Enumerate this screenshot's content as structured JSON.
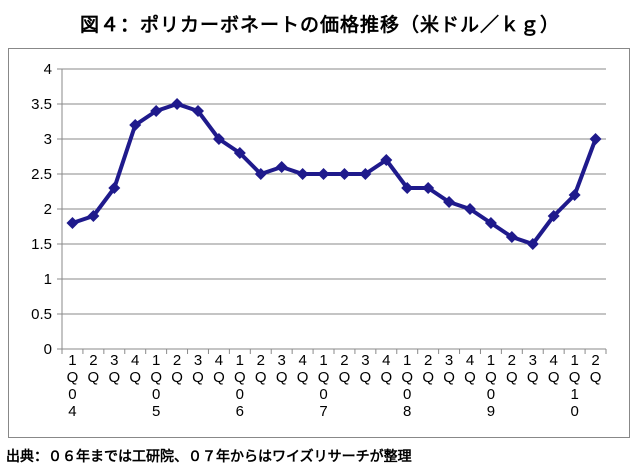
{
  "title": "図４：ポリカーボネートの価格推移（米ドル／ｋｇ）",
  "source": "出典：０６年までは工研院、０７年からはワイズリサーチが整理",
  "colors": {
    "line": "#1f1a8c",
    "grid": "#8a8a8a",
    "axis": "#8a8a8a"
  },
  "chart_data": {
    "type": "line",
    "title": "図４：ポリカーボネートの価格推移（米ドル／ｋｇ）",
    "xlabel": "",
    "ylabel": "",
    "ylim": [
      0,
      4
    ],
    "yticks": [
      "0",
      "0.5",
      "1",
      "1.5",
      "2",
      "2.5",
      "3",
      "3.5",
      "4"
    ],
    "grid": true,
    "legend": "none",
    "marker": "diamond",
    "categories": [
      [
        "1",
        "Q",
        "0",
        "4"
      ],
      [
        "2",
        "Q"
      ],
      [
        "3",
        "Q"
      ],
      [
        "4",
        "Q"
      ],
      [
        "1",
        "Q",
        "0",
        "5"
      ],
      [
        "2",
        "Q"
      ],
      [
        "3",
        "Q"
      ],
      [
        "4",
        "Q"
      ],
      [
        "1",
        "Q",
        "0",
        "6"
      ],
      [
        "2",
        "Q"
      ],
      [
        "3",
        "Q"
      ],
      [
        "4",
        "Q"
      ],
      [
        "1",
        "Q",
        "0",
        "7"
      ],
      [
        "2",
        "Q"
      ],
      [
        "3",
        "Q"
      ],
      [
        "4",
        "Q"
      ],
      [
        "1",
        "Q",
        "0",
        "8"
      ],
      [
        "2",
        "Q"
      ],
      [
        "3",
        "Q"
      ],
      [
        "4",
        "Q"
      ],
      [
        "1",
        "Q",
        "0",
        "9"
      ],
      [
        "2",
        "Q"
      ],
      [
        "3",
        "Q"
      ],
      [
        "4",
        "Q"
      ],
      [
        "1",
        "Q",
        "1",
        "0"
      ],
      [
        "2",
        "Q"
      ]
    ],
    "series": [
      {
        "values": [
          1.8,
          1.9,
          2.3,
          3.2,
          3.4,
          3.5,
          3.4,
          3.0,
          2.8,
          2.5,
          2.6,
          2.5,
          2.5,
          2.5,
          2.5,
          2.7,
          2.3,
          2.3,
          2.1,
          2.0,
          1.8,
          1.6,
          1.5,
          1.9,
          2.2,
          3.0
        ]
      }
    ]
  }
}
